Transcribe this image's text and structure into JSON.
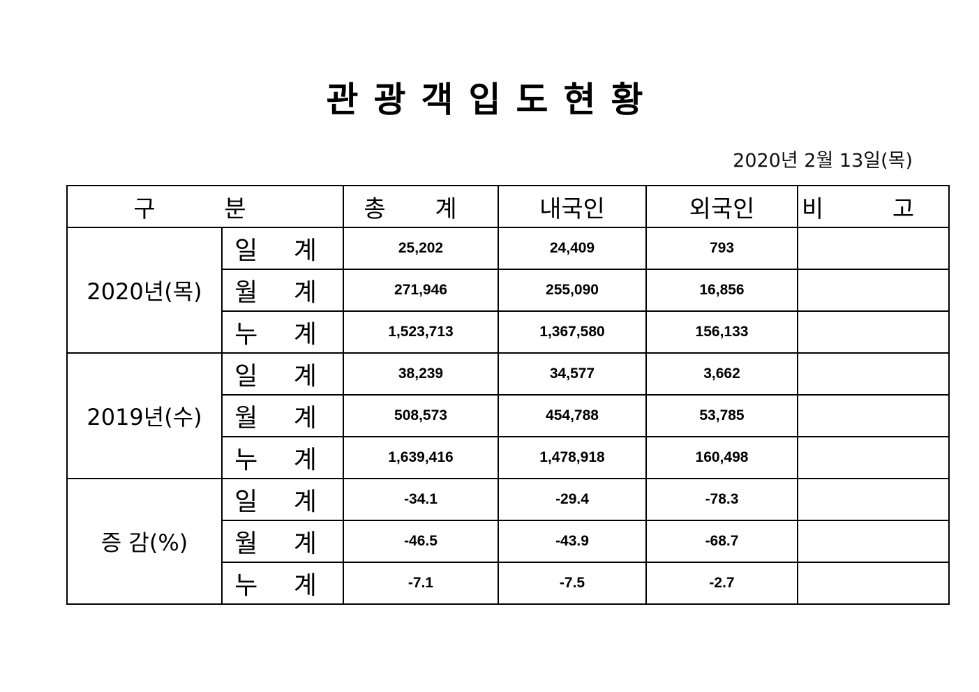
{
  "document": {
    "title": "관광객입도현황",
    "date": "2020년  2월  13일(목)"
  },
  "table": {
    "headers": {
      "category": "구  분",
      "total": "총  계",
      "domestic": "내국인",
      "foreign": "외국인",
      "note": "비  고"
    },
    "groups": [
      {
        "label": "2020년(목)",
        "rows": [
          {
            "label": "일 계",
            "total": "25,202",
            "domestic": "24,409",
            "foreign": "793",
            "note": ""
          },
          {
            "label": "월 계",
            "total": "271,946",
            "domestic": "255,090",
            "foreign": "16,856",
            "note": ""
          },
          {
            "label": "누 계",
            "total": "1,523,713",
            "domestic": "1,367,580",
            "foreign": "156,133",
            "note": ""
          }
        ]
      },
      {
        "label": "2019년(수)",
        "rows": [
          {
            "label": "일 계",
            "total": "38,239",
            "domestic": "34,577",
            "foreign": "3,662",
            "note": ""
          },
          {
            "label": "월 계",
            "total": "508,573",
            "domestic": "454,788",
            "foreign": "53,785",
            "note": ""
          },
          {
            "label": "누 계",
            "total": "1,639,416",
            "domestic": "1,478,918",
            "foreign": "160,498",
            "note": ""
          }
        ]
      },
      {
        "label": "증 감(%)",
        "rows": [
          {
            "label": "일 계",
            "total": "-34.1",
            "domestic": "-29.4",
            "foreign": "-78.3",
            "note": ""
          },
          {
            "label": "월 계",
            "total": "-46.5",
            "domestic": "-43.9",
            "foreign": "-68.7",
            "note": ""
          },
          {
            "label": "누 계",
            "total": "-7.1",
            "domestic": "-7.5",
            "foreign": "-2.7",
            "note": ""
          }
        ]
      }
    ]
  }
}
